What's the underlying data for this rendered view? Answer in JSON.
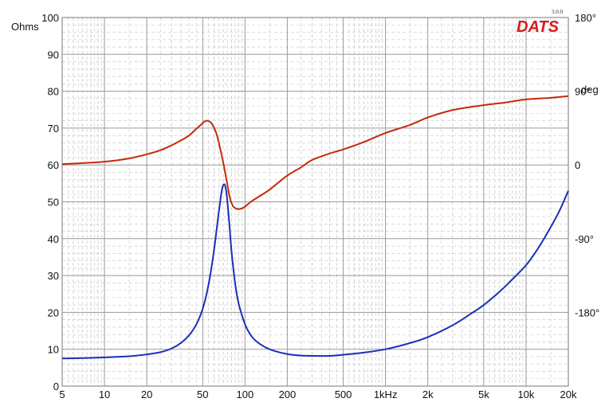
{
  "chart_data": {
    "type": "line",
    "title": "",
    "x_scale": "log",
    "x_range": [
      5,
      20000
    ],
    "x_ticks": [
      {
        "value": 5,
        "label": "5"
      },
      {
        "value": 10,
        "label": "10"
      },
      {
        "value": 20,
        "label": "20"
      },
      {
        "value": 50,
        "label": "50"
      },
      {
        "value": 100,
        "label": "100"
      },
      {
        "value": 200,
        "label": "200"
      },
      {
        "value": 500,
        "label": "500"
      },
      {
        "value": 1000,
        "label": "1kHz"
      },
      {
        "value": 2000,
        "label": "2k"
      },
      {
        "value": 5000,
        "label": "5k"
      },
      {
        "value": 10000,
        "label": "10k"
      },
      {
        "value": 20000,
        "label": "20k"
      }
    ],
    "y_left": {
      "label": "Ohms",
      "range": [
        0,
        100
      ],
      "ticks": [
        0,
        10,
        20,
        30,
        40,
        50,
        60,
        70,
        80,
        90,
        100
      ],
      "color": "#3333cc"
    },
    "y_right": {
      "label": "deg",
      "range": [
        -270,
        180
      ],
      "ticks": [
        {
          "value": 180,
          "label": "180°"
        },
        {
          "value": 90,
          "label": "90°"
        },
        {
          "value": 0,
          "label": "0"
        },
        {
          "value": -90,
          "label": "-90°"
        },
        {
          "value": -180,
          "label": "-180°"
        }
      ],
      "color": "#cc2200"
    },
    "grid": true,
    "series": [
      {
        "axis": "left",
        "color": "#1a2fb8",
        "points": [
          [
            5,
            7.5
          ],
          [
            7,
            7.6
          ],
          [
            10,
            7.8
          ],
          [
            15,
            8.1
          ],
          [
            20,
            8.6
          ],
          [
            25,
            9.2
          ],
          [
            30,
            10.2
          ],
          [
            35,
            11.7
          ],
          [
            40,
            13.8
          ],
          [
            45,
            16.7
          ],
          [
            50,
            21.0
          ],
          [
            55,
            27.5
          ],
          [
            60,
            36.5
          ],
          [
            65,
            47.0
          ],
          [
            68,
            52.5
          ],
          [
            70,
            54.5
          ],
          [
            72,
            54.5
          ],
          [
            74,
            52.0
          ],
          [
            77,
            45.0
          ],
          [
            80,
            37.0
          ],
          [
            85,
            28.0
          ],
          [
            90,
            22.5
          ],
          [
            100,
            16.8
          ],
          [
            110,
            13.8
          ],
          [
            120,
            12.2
          ],
          [
            140,
            10.5
          ],
          [
            160,
            9.6
          ],
          [
            200,
            8.7
          ],
          [
            250,
            8.3
          ],
          [
            300,
            8.2
          ],
          [
            400,
            8.2
          ],
          [
            500,
            8.5
          ],
          [
            700,
            9.1
          ],
          [
            1000,
            10.0
          ],
          [
            1500,
            11.7
          ],
          [
            2000,
            13.3
          ],
          [
            3000,
            16.5
          ],
          [
            4000,
            19.5
          ],
          [
            5000,
            22.0
          ],
          [
            6000,
            24.5
          ],
          [
            7000,
            26.8
          ],
          [
            8000,
            29.0
          ],
          [
            10000,
            32.8
          ],
          [
            12000,
            37.0
          ],
          [
            14000,
            41.2
          ],
          [
            17000,
            47.0
          ],
          [
            20000,
            53.0
          ]
        ]
      },
      {
        "axis": "right",
        "color": "#c42a0a",
        "points": [
          [
            5,
            1
          ],
          [
            10,
            4
          ],
          [
            15,
            8
          ],
          [
            20,
            13
          ],
          [
            25,
            18
          ],
          [
            30,
            24
          ],
          [
            35,
            30
          ],
          [
            40,
            36
          ],
          [
            45,
            44
          ],
          [
            50,
            51
          ],
          [
            53,
            54
          ],
          [
            57,
            52
          ],
          [
            60,
            46
          ],
          [
            63,
            37
          ],
          [
            66,
            23
          ],
          [
            70,
            3
          ],
          [
            74,
            -19
          ],
          [
            78,
            -40
          ],
          [
            82,
            -50
          ],
          [
            86,
            -53
          ],
          [
            90,
            -54
          ],
          [
            95,
            -53
          ],
          [
            100,
            -51
          ],
          [
            110,
            -45
          ],
          [
            130,
            -37
          ],
          [
            150,
            -30
          ],
          [
            200,
            -13
          ],
          [
            250,
            -3
          ],
          [
            300,
            6
          ],
          [
            400,
            14
          ],
          [
            500,
            19
          ],
          [
            700,
            28
          ],
          [
            1000,
            39
          ],
          [
            1500,
            49
          ],
          [
            2000,
            58
          ],
          [
            3000,
            67
          ],
          [
            5000,
            73
          ],
          [
            7000,
            76
          ],
          [
            10000,
            80
          ],
          [
            15000,
            82
          ],
          [
            20000,
            84
          ]
        ]
      }
    ]
  },
  "branding": {
    "logo_text": "DATS",
    "version": "3.0.0",
    "logo_color": "#d8191b"
  }
}
